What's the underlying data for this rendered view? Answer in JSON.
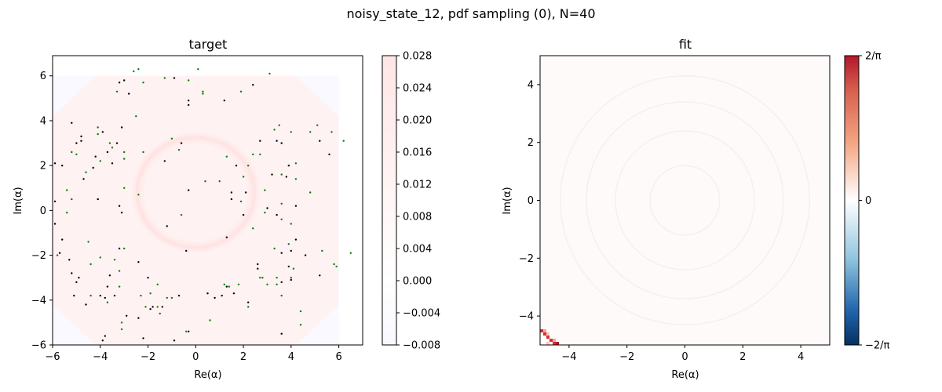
{
  "figure": {
    "suptitle": "noisy_state_12, pdf sampling (0), N=40"
  },
  "chart_data": [
    {
      "type": "heatmap",
      "title": "target",
      "xlabel": "Re(α)",
      "ylabel": "Im(α)",
      "xlim": [
        -6,
        7
      ],
      "ylim": [
        -6,
        6.9
      ],
      "xticks": [
        "−6",
        "−4",
        "−2",
        "0",
        "2",
        "4",
        "6"
      ],
      "yticks": [
        "−6",
        "−4",
        "−2",
        "0",
        "2",
        "4",
        "6"
      ],
      "colorbar": {
        "range": [
          -0.008,
          0.028
        ],
        "ticks": [
          "−0.008",
          "−0.004",
          "0.000",
          "0.004",
          "0.008",
          "0.012",
          "0.016",
          "0.020",
          "0.024",
          "0.028"
        ],
        "colormap": "bwr",
        "low_color": "#f7f7ff",
        "mid_color": "#ffffff",
        "high_color": "#ffe6e6"
      },
      "field": {
        "extent": [
          -6,
          6,
          -6,
          6
        ],
        "background_value": 0.004,
        "ring_value": 0.007,
        "ring_center": [
          0,
          0.8
        ],
        "ring_radius": 2.6
      },
      "sample_points": {
        "black": [
          [
            -5.9,
            2.1
          ],
          [
            -5.6,
            2.0
          ],
          [
            -5.9,
            0.4
          ],
          [
            -5.9,
            -0.6
          ],
          [
            -5.2,
            3.9
          ],
          [
            -5.0,
            3.0
          ],
          [
            -4.8,
            3.3
          ],
          [
            -4.8,
            3.1
          ],
          [
            -4.7,
            1.4
          ],
          [
            -3.9,
            3.5
          ],
          [
            -3.3,
            3.0
          ],
          [
            -3.7,
            2.6
          ],
          [
            -3.2,
            5.7
          ],
          [
            -3.0,
            5.8
          ],
          [
            -2.8,
            5.2
          ],
          [
            -3.1,
            3.7
          ],
          [
            -3.5,
            2.1
          ],
          [
            -4.3,
            1.9
          ],
          [
            -4.2,
            2.4
          ],
          [
            -4.1,
            0.5
          ],
          [
            -3.2,
            0.2
          ],
          [
            -3.1,
            -0.1
          ],
          [
            -3.2,
            -1.7
          ],
          [
            -2.4,
            -2.3
          ],
          [
            -1.3,
            2.2
          ],
          [
            -1.2,
            -0.7
          ],
          [
            -0.9,
            5.9
          ],
          [
            -0.6,
            3.0
          ],
          [
            -0.3,
            4.9
          ],
          [
            -0.3,
            4.7
          ],
          [
            -0.3,
            0.9
          ],
          [
            -0.4,
            -1.8
          ],
          [
            1.2,
            4.9
          ],
          [
            2.4,
            5.6
          ],
          [
            1.7,
            2.0
          ],
          [
            1.5,
            0.8
          ],
          [
            1.5,
            0.5
          ],
          [
            2.1,
            0.8
          ],
          [
            2.0,
            -0.2
          ],
          [
            1.3,
            -1.2
          ],
          [
            2.7,
            3.1
          ],
          [
            3.4,
            3.1
          ],
          [
            3.6,
            3.0
          ],
          [
            3.2,
            1.6
          ],
          [
            3.0,
            0.1
          ],
          [
            3.4,
            -0.2
          ],
          [
            3.8,
            1.5
          ],
          [
            3.9,
            2.0
          ],
          [
            4.2,
            0.2
          ],
          [
            4.2,
            -1.3
          ],
          [
            3.6,
            -1.9
          ],
          [
            4.0,
            -1.8
          ],
          [
            3.9,
            -2.5
          ],
          [
            3.6,
            -3.2
          ],
          [
            4.0,
            -3.1
          ],
          [
            4.6,
            -2.0
          ],
          [
            5.2,
            3.1
          ],
          [
            5.6,
            2.5
          ],
          [
            5.2,
            -2.9
          ],
          [
            3.6,
            -5.5
          ],
          [
            2.6,
            -2.4
          ],
          [
            2.6,
            -2.6
          ],
          [
            2.2,
            -4.1
          ],
          [
            1.6,
            -3.7
          ],
          [
            1.1,
            -3.8
          ],
          [
            1.3,
            -3.4
          ],
          [
            0.5,
            -3.7
          ],
          [
            0.8,
            -3.9
          ],
          [
            -0.3,
            -5.4
          ],
          [
            -0.7,
            -3.8
          ],
          [
            -1.4,
            -4.3
          ],
          [
            -1.8,
            -4.3
          ],
          [
            -1.9,
            -4.4
          ],
          [
            -2.0,
            -3.0
          ],
          [
            -2.4,
            -4.8
          ],
          [
            -2.9,
            -4.7
          ],
          [
            -3.4,
            -3.8
          ],
          [
            -3.8,
            -3.9
          ],
          [
            -3.7,
            -3.4
          ],
          [
            -3.6,
            -2.9
          ],
          [
            -4.0,
            -3.8
          ],
          [
            -4.6,
            -4.2
          ],
          [
            -4.9,
            -3.0
          ],
          [
            -5.0,
            -3.2
          ],
          [
            -5.1,
            -3.8
          ],
          [
            -5.3,
            -2.2
          ],
          [
            -5.2,
            -2.8
          ],
          [
            -5.6,
            -1.3
          ],
          [
            -3.9,
            -5.8
          ],
          [
            -3.8,
            -5.6
          ],
          [
            -2.2,
            -5.7
          ],
          [
            -0.9,
            -5.8
          ],
          [
            -5.7,
            -1.9
          ]
        ],
        "green": [
          [
            -5.8,
            -2.0
          ],
          [
            -5.4,
            0.9
          ],
          [
            -5.4,
            -0.1
          ],
          [
            -5.2,
            2.6
          ],
          [
            -5.0,
            2.5
          ],
          [
            -4.5,
            -1.4
          ],
          [
            -4.4,
            -2.4
          ],
          [
            -4.4,
            -3.8
          ],
          [
            -4.1,
            3.7
          ],
          [
            -4.1,
            3.4
          ],
          [
            -4.0,
            2.2
          ],
          [
            -4.0,
            -2.1
          ],
          [
            -3.7,
            -4.1
          ],
          [
            -3.6,
            3.0
          ],
          [
            -3.5,
            2.8
          ],
          [
            -3.4,
            -2.2
          ],
          [
            -3.2,
            -2.7
          ],
          [
            -3.2,
            -3.4
          ],
          [
            -3.1,
            -5.0
          ],
          [
            -3.1,
            -5.3
          ],
          [
            -3.0,
            2.6
          ],
          [
            -3.0,
            2.3
          ],
          [
            -3.0,
            1.0
          ],
          [
            -3.0,
            -1.7
          ],
          [
            -2.6,
            6.2
          ],
          [
            -2.4,
            6.3
          ],
          [
            -2.5,
            4.2
          ],
          [
            -2.4,
            0.7
          ],
          [
            -2.3,
            -3.8
          ],
          [
            -2.2,
            5.7
          ],
          [
            -2.2,
            2.6
          ],
          [
            -2.1,
            -4.3
          ],
          [
            -1.9,
            -3.7
          ],
          [
            -1.6,
            -4.3
          ],
          [
            -1.6,
            -3.3
          ],
          [
            -1.5,
            -4.6
          ],
          [
            -1.3,
            5.9
          ],
          [
            -1.2,
            -3.9
          ],
          [
            -1.0,
            -3.9
          ],
          [
            -0.7,
            2.7
          ],
          [
            -0.6,
            -0.2
          ],
          [
            -0.3,
            5.8
          ],
          [
            0.1,
            6.3
          ],
          [
            0.3,
            5.3
          ],
          [
            0.3,
            5.2
          ],
          [
            0.4,
            1.3
          ],
          [
            -0.4,
            -5.4
          ],
          [
            0.6,
            -4.9
          ],
          [
            1.0,
            1.3
          ],
          [
            1.2,
            -3.3
          ],
          [
            1.4,
            -3.4
          ],
          [
            1.8,
            -3.3
          ],
          [
            1.9,
            0.4
          ],
          [
            1.9,
            5.3
          ],
          [
            2.0,
            1.5
          ],
          [
            2.2,
            2.0
          ],
          [
            2.2,
            -4.3
          ],
          [
            2.4,
            2.5
          ],
          [
            2.4,
            -0.8
          ],
          [
            2.7,
            2.5
          ],
          [
            2.7,
            -3.0
          ],
          [
            2.8,
            -3.0
          ],
          [
            2.9,
            0.9
          ],
          [
            2.9,
            -0.1
          ],
          [
            3.0,
            -3.3
          ],
          [
            3.1,
            6.1
          ],
          [
            3.3,
            -1.7
          ],
          [
            3.3,
            3.6
          ],
          [
            3.4,
            -3.0
          ],
          [
            3.4,
            -3.3
          ],
          [
            3.5,
            3.8
          ],
          [
            3.6,
            1.6
          ],
          [
            3.6,
            0.3
          ],
          [
            3.6,
            -3.8
          ],
          [
            3.6,
            -0.4
          ],
          [
            3.9,
            -1.5
          ],
          [
            4.0,
            3.5
          ],
          [
            4.0,
            -3.0
          ],
          [
            4.1,
            -2.6
          ],
          [
            4.0,
            -0.6
          ],
          [
            4.2,
            1.4
          ],
          [
            4.2,
            2.1
          ],
          [
            4.4,
            -4.5
          ],
          [
            4.4,
            -5.1
          ],
          [
            4.8,
            3.5
          ],
          [
            4.8,
            0.8
          ],
          [
            5.1,
            3.8
          ],
          [
            5.3,
            -1.8
          ],
          [
            5.7,
            3.5
          ],
          [
            5.8,
            -2.4
          ],
          [
            5.9,
            -2.5
          ],
          [
            6.2,
            3.1
          ],
          [
            6.5,
            -1.9
          ],
          [
            -5.2,
            0.5
          ],
          [
            -3.3,
            5.3
          ],
          [
            -1.0,
            3.2
          ],
          [
            1.3,
            2.4
          ],
          [
            -4.6,
            1.7
          ]
        ]
      }
    },
    {
      "type": "heatmap",
      "title": "fit",
      "xlabel": "Re(α)",
      "ylabel": "Im(α)",
      "xlim": [
        -5,
        5
      ],
      "ylim": [
        -5,
        5
      ],
      "xticks": [
        "−4",
        "−2",
        "0",
        "2",
        "4"
      ],
      "yticks": [
        "−4",
        "−2",
        "0",
        "2",
        "4"
      ],
      "colorbar": {
        "range": [
          -0.6366,
          0.6366
        ],
        "ticks": [
          "−2/π",
          "0",
          "2/π"
        ],
        "colormap": "RdBu_r",
        "low_color": "#053061",
        "mid_color": "#ffffff",
        "high_color": "#b2182b"
      },
      "field": {
        "extent": [
          -5,
          5,
          -5,
          5
        ],
        "background_value": 0.002,
        "corner_feature_value": 0.5
      }
    }
  ]
}
